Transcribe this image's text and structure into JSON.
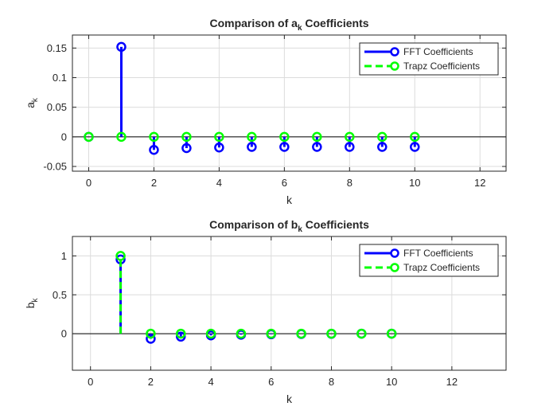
{
  "chart_data": [
    {
      "type": "stem",
      "title": "Comparison of a Coefficients",
      "title_main": "Comparison of a",
      "title_sub": "k",
      "title_tail": " Coefficients",
      "xlabel": "k",
      "ylabel_main": "a",
      "ylabel_sub": "k",
      "xlim": [
        -0.5,
        12.8
      ],
      "ylim": [
        -0.058,
        0.172
      ],
      "xticks": [
        0,
        2,
        4,
        6,
        8,
        10,
        12
      ],
      "xtick_labels": [
        "0",
        "2",
        "4",
        "6",
        "8",
        "10",
        "12"
      ],
      "yticks": [
        -0.05,
        0,
        0.05,
        0.1,
        0.15
      ],
      "ytick_labels": [
        "-0.05",
        "0",
        "0.05",
        "0.1",
        "0.15"
      ],
      "grid": true,
      "legend_position": "top-right",
      "series": [
        {
          "name": "FFT Coefficients",
          "color": "#0000ff",
          "line": "solid",
          "x": [
            0,
            1,
            2,
            3,
            4,
            5,
            6,
            7,
            8,
            9,
            10
          ],
          "values": [
            0,
            0.152,
            -0.022,
            -0.019,
            -0.018,
            -0.017,
            -0.017,
            -0.017,
            -0.017,
            -0.017,
            -0.017
          ]
        },
        {
          "name": "Trapz Coefficients",
          "color": "#00ff00",
          "line": "dashed",
          "x": [
            0,
            1,
            2,
            3,
            4,
            5,
            6,
            7,
            8,
            9,
            10
          ],
          "values": [
            0,
            0,
            0,
            0,
            0,
            0,
            0,
            0,
            0,
            0,
            0
          ]
        }
      ]
    },
    {
      "type": "stem",
      "title": "Comparison of b Coefficients",
      "title_main": "Comparison of b",
      "title_sub": "k",
      "title_tail": " Coefficients",
      "xlabel": "k",
      "ylabel_main": "b",
      "ylabel_sub": "k",
      "xlim": [
        -0.6,
        13.8
      ],
      "ylim": [
        -0.47,
        1.25
      ],
      "xticks": [
        0,
        2,
        4,
        6,
        8,
        10,
        12
      ],
      "xtick_labels": [
        "0",
        "2",
        "4",
        "6",
        "8",
        "10",
        "12"
      ],
      "yticks": [
        0,
        0.5,
        1
      ],
      "ytick_labels": [
        "0",
        "0.5",
        "1"
      ],
      "grid": true,
      "legend_position": "top-right",
      "series": [
        {
          "name": "FFT Coefficients",
          "color": "#0000ff",
          "line": "solid",
          "x": [
            1,
            2,
            3,
            4,
            5,
            6,
            7,
            8,
            9,
            10
          ],
          "values": [
            0.955,
            -0.065,
            -0.038,
            -0.022,
            -0.013,
            -0.007,
            -0.004,
            -0.002,
            0,
            0
          ]
        },
        {
          "name": "Trapz Coefficients",
          "color": "#00ff00",
          "line": "dashed",
          "x": [
            1,
            2,
            3,
            4,
            5,
            6,
            7,
            8,
            9,
            10
          ],
          "values": [
            1.0,
            0,
            0,
            0,
            0,
            0,
            0,
            0,
            0,
            0
          ]
        }
      ]
    }
  ]
}
